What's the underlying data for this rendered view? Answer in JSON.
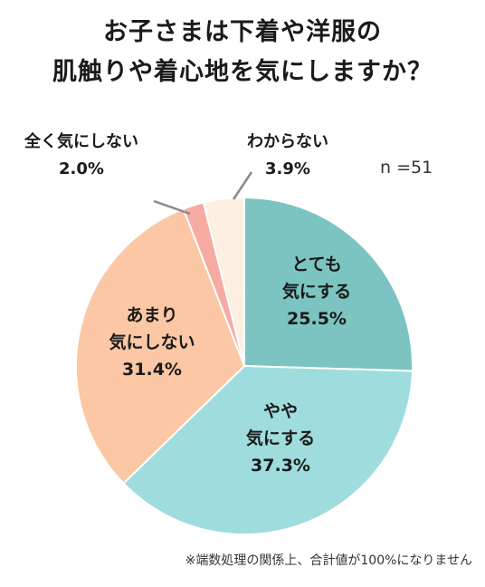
{
  "chart_data": {
    "type": "pie",
    "title": [
      "お子さまは下着や洋服の",
      "肌触りや着心地を気にしますか？"
    ],
    "sample_size": "n =51",
    "slices": [
      {
        "label": [
          "とても",
          "気にする"
        ],
        "value": 25.5,
        "value_label": "25.5%",
        "color": "#7cc4c1"
      },
      {
        "label": [
          "やや",
          "気にする"
        ],
        "value": 37.3,
        "value_label": "37.3%",
        "color": "#9fdcdd"
      },
      {
        "label": [
          "あまり",
          "気にしない"
        ],
        "value": 31.4,
        "value_label": "31.4%",
        "color": "#fbc7a4"
      },
      {
        "label": [
          "全く気にしない"
        ],
        "value": 2.0,
        "value_label": "2.0%",
        "color": "#f6aba2"
      },
      {
        "label": [
          "わからない"
        ],
        "value": 3.9,
        "value_label": "3.9%",
        "color": "#fdf0e2"
      }
    ],
    "footnote": "※端数処理の関係上、合計値が100%になりません"
  }
}
